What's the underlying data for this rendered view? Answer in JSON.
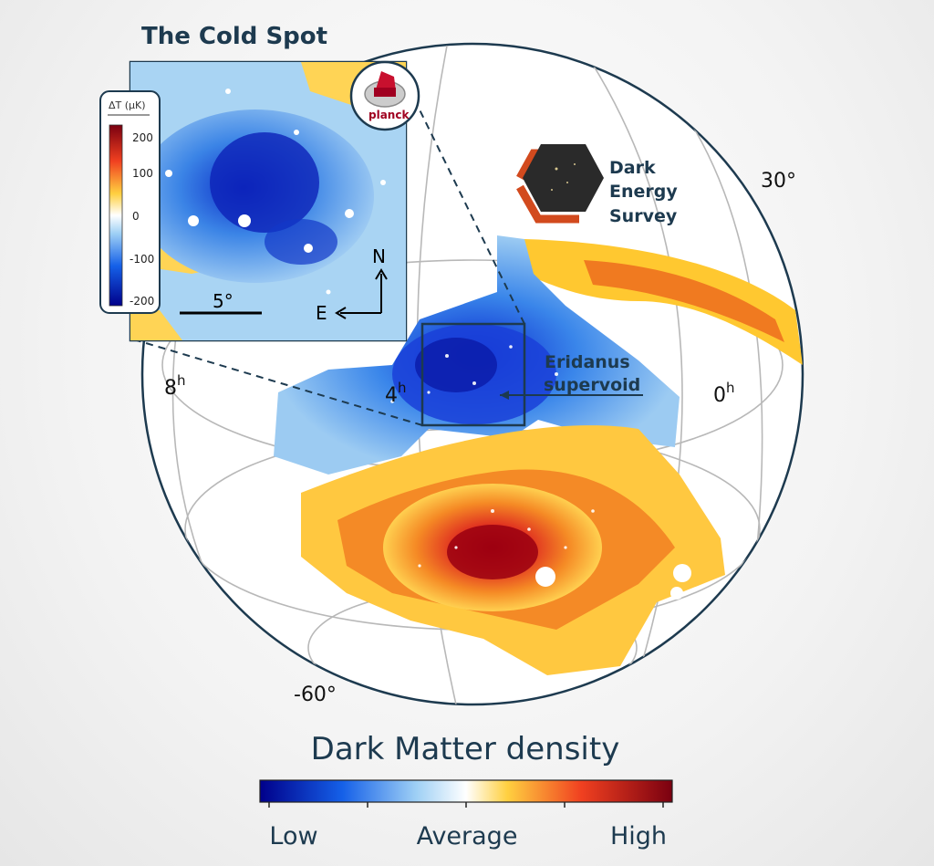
{
  "inset": {
    "title": "The Cold Spot",
    "colorbar_label": "ΔT (μK)",
    "colorbar_ticks": [
      "200",
      "100",
      "0",
      "-100",
      "-200"
    ],
    "scale_label": "5°",
    "north_label": "N",
    "east_label": "E",
    "badge_text": "planck"
  },
  "survey": {
    "line1": "Dark",
    "line2": "Energy",
    "line3": "Survey"
  },
  "sphere": {
    "ra_8h": "8",
    "ra_4h": "4",
    "ra_0h": "0",
    "ra_unit": "h",
    "dec_top": "30°",
    "dec_bottom": "-60°"
  },
  "annotation": {
    "line1": "Eridanus",
    "line2": "supervoid"
  },
  "legend": {
    "title": "Dark Matter density",
    "low": "Low",
    "average": "Average",
    "high": "High"
  },
  "colors": {
    "navy": "#1d3a4f",
    "low": "#0a0a9a",
    "high": "#8a0010",
    "average": "#ffffff"
  }
}
